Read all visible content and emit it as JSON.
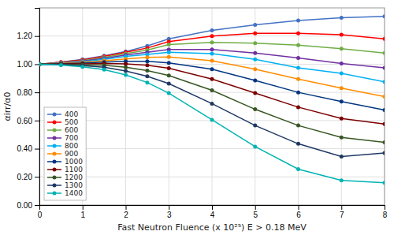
{
  "chart_data": {
    "type": "line",
    "xlabel": "Fast Neutron Fluence (x 10²⁵) E > 0.18 MeV",
    "ylabel": "αirr/α0",
    "x": [
      0,
      0.5,
      1.0,
      1.5,
      2.0,
      2.5,
      3.0,
      4.0,
      5.0,
      6.0,
      7.0,
      8.0
    ],
    "series": [
      {
        "name": "400",
        "color": "#4472C4",
        "marker": "o",
        "values": [
          1.0,
          1.015,
          1.035,
          1.06,
          1.09,
          1.13,
          1.18,
          1.24,
          1.28,
          1.31,
          1.33,
          1.34
        ]
      },
      {
        "name": "500",
        "color": "#FF0000",
        "marker": "o",
        "values": [
          1.0,
          1.015,
          1.03,
          1.055,
          1.085,
          1.115,
          1.16,
          1.2,
          1.22,
          1.22,
          1.21,
          1.18
        ]
      },
      {
        "name": "600",
        "color": "#70AD47",
        "marker": "o",
        "values": [
          1.0,
          1.012,
          1.025,
          1.048,
          1.075,
          1.1,
          1.14,
          1.155,
          1.15,
          1.135,
          1.11,
          1.08
        ]
      },
      {
        "name": "700",
        "color": "#7030A0",
        "marker": "o",
        "values": [
          1.0,
          1.01,
          1.022,
          1.042,
          1.065,
          1.085,
          1.105,
          1.105,
          1.08,
          1.045,
          1.005,
          0.975
        ]
      },
      {
        "name": "800",
        "color": "#00B0F0",
        "marker": "o",
        "values": [
          1.0,
          1.008,
          1.018,
          1.035,
          1.055,
          1.07,
          1.085,
          1.075,
          1.035,
          0.975,
          0.935,
          0.875
        ]
      },
      {
        "name": "900",
        "color": "#FF8C00",
        "marker": "o",
        "values": [
          1.0,
          1.006,
          1.014,
          1.025,
          1.038,
          1.048,
          1.052,
          1.025,
          0.965,
          0.895,
          0.83,
          0.77
        ]
      },
      {
        "name": "1000",
        "color": "#003580",
        "marker": "o",
        "values": [
          1.0,
          1.004,
          1.008,
          1.015,
          1.02,
          1.02,
          1.01,
          0.965,
          0.885,
          0.8,
          0.735,
          0.675
        ]
      },
      {
        "name": "1100",
        "color": "#7B0000",
        "marker": "o",
        "values": [
          1.0,
          1.002,
          1.003,
          1.005,
          1.002,
          0.992,
          0.972,
          0.895,
          0.795,
          0.695,
          0.615,
          0.575
        ]
      },
      {
        "name": "1200",
        "color": "#375623",
        "marker": "o",
        "values": [
          1.0,
          0.999,
          0.997,
          0.992,
          0.978,
          0.955,
          0.92,
          0.815,
          0.68,
          0.565,
          0.48,
          0.445
        ]
      },
      {
        "name": "1300",
        "color": "#1F3864",
        "marker": "o",
        "values": [
          1.0,
          0.997,
          0.99,
          0.978,
          0.952,
          0.914,
          0.862,
          0.72,
          0.565,
          0.435,
          0.345,
          0.37
        ]
      },
      {
        "name": "1400",
        "color": "#00B3B3",
        "marker": "o",
        "values": [
          1.0,
          0.994,
          0.982,
          0.962,
          0.924,
          0.87,
          0.795,
          0.605,
          0.415,
          0.255,
          0.175,
          0.158
        ]
      }
    ],
    "xlim": [
      0,
      8
    ],
    "xticks": [
      0,
      1,
      2,
      3,
      4,
      5,
      6,
      7,
      8
    ],
    "ylim": [
      0.0,
      1.4
    ],
    "yticks": [
      {
        "value": 0.0,
        "label": "0.00"
      },
      {
        "value": 0.2,
        "label": "0.20"
      },
      {
        "value": 0.4,
        "label": "0.40"
      },
      {
        "value": 0.6,
        "label": "0.60"
      },
      {
        "value": 0.8,
        "label": "0.80"
      },
      {
        "value": 1.0,
        "label": "1.00"
      },
      {
        "value": 1.2,
        "label": "1.20"
      }
    ],
    "grid": true,
    "legend": "lower left"
  }
}
